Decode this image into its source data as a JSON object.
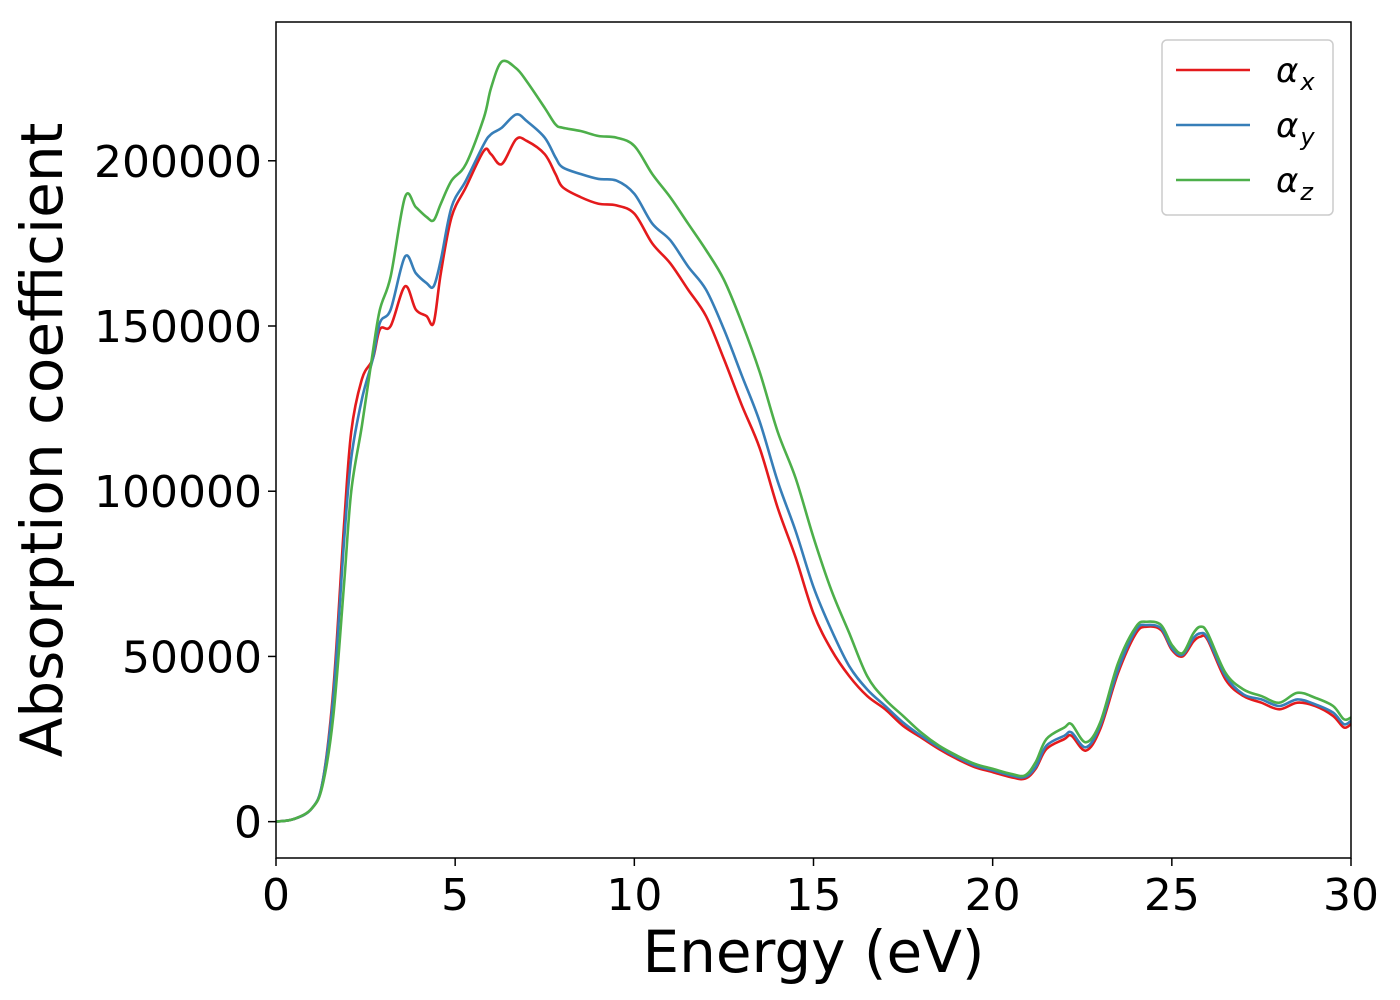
{
  "chart_data": {
    "type": "line",
    "title": "",
    "xlabel": "Energy (eV)",
    "ylabel": "Absorption coefficient",
    "xlim": [
      0,
      30
    ],
    "ylim": [
      -11000,
      242000
    ],
    "grid": false,
    "legend_position": "top-right",
    "x_ticks": [
      0,
      5,
      10,
      15,
      20,
      25,
      30
    ],
    "x_tick_labels": [
      "0",
      "5",
      "10",
      "15",
      "20",
      "25",
      "30"
    ],
    "y_ticks": [
      0,
      50000,
      100000,
      150000,
      200000
    ],
    "y_tick_labels": [
      "0",
      "50000",
      "100000",
      "150000",
      "200000"
    ],
    "series": [
      {
        "name": "α",
        "subscript": "x",
        "color": "#e41a1c",
        "points": [
          [
            0,
            0
          ],
          [
            0.5,
            800
          ],
          [
            1.0,
            4000
          ],
          [
            1.3,
            12000
          ],
          [
            1.6,
            40000
          ],
          [
            1.9,
            90000
          ],
          [
            2.1,
            118000
          ],
          [
            2.4,
            134000
          ],
          [
            2.7,
            140000
          ],
          [
            2.9,
            149000
          ],
          [
            3.2,
            150000
          ],
          [
            3.6,
            162000
          ],
          [
            3.9,
            155000
          ],
          [
            4.2,
            153000
          ],
          [
            4.4,
            151000
          ],
          [
            4.6,
            166000
          ],
          [
            4.9,
            183000
          ],
          [
            5.3,
            192000
          ],
          [
            5.8,
            203000
          ],
          [
            6.0,
            202000
          ],
          [
            6.3,
            199000
          ],
          [
            6.7,
            206500
          ],
          [
            7.0,
            206000
          ],
          [
            7.5,
            202000
          ],
          [
            7.8,
            196000
          ],
          [
            8.0,
            192000
          ],
          [
            8.5,
            189000
          ],
          [
            9.0,
            187000
          ],
          [
            9.5,
            186500
          ],
          [
            10.0,
            184000
          ],
          [
            10.5,
            175000
          ],
          [
            11.0,
            169000
          ],
          [
            11.5,
            161000
          ],
          [
            12.0,
            153000
          ],
          [
            12.5,
            140000
          ],
          [
            13.0,
            126000
          ],
          [
            13.5,
            113000
          ],
          [
            14.0,
            95000
          ],
          [
            14.5,
            80000
          ],
          [
            15.0,
            63000
          ],
          [
            15.5,
            52000
          ],
          [
            16.0,
            44000
          ],
          [
            16.5,
            38000
          ],
          [
            17.0,
            34000
          ],
          [
            17.5,
            29000
          ],
          [
            18.0,
            25500
          ],
          [
            18.5,
            22000
          ],
          [
            19.0,
            19000
          ],
          [
            19.5,
            16500
          ],
          [
            20.0,
            15000
          ],
          [
            20.5,
            13500
          ],
          [
            20.9,
            13000
          ],
          [
            21.2,
            16000
          ],
          [
            21.5,
            22000
          ],
          [
            22.0,
            25000
          ],
          [
            22.2,
            26000
          ],
          [
            22.6,
            21500
          ],
          [
            23.0,
            28000
          ],
          [
            23.5,
            45000
          ],
          [
            24.0,
            57000
          ],
          [
            24.3,
            59000
          ],
          [
            24.7,
            58000
          ],
          [
            25.0,
            52000
          ],
          [
            25.3,
            50000
          ],
          [
            25.6,
            54500
          ],
          [
            25.8,
            56000
          ],
          [
            26.0,
            55000
          ],
          [
            26.5,
            43000
          ],
          [
            27.0,
            38000
          ],
          [
            27.5,
            36000
          ],
          [
            28.0,
            34000
          ],
          [
            28.5,
            36000
          ],
          [
            29.0,
            35000
          ],
          [
            29.5,
            32000
          ],
          [
            29.8,
            28500
          ],
          [
            30,
            29500
          ]
        ]
      },
      {
        "name": "α",
        "subscript": "y",
        "color": "#377eb8",
        "points": [
          [
            0,
            0
          ],
          [
            0.5,
            800
          ],
          [
            1.0,
            4000
          ],
          [
            1.3,
            12000
          ],
          [
            1.6,
            38000
          ],
          [
            1.9,
            85000
          ],
          [
            2.1,
            110000
          ],
          [
            2.4,
            128000
          ],
          [
            2.7,
            140000
          ],
          [
            2.9,
            151000
          ],
          [
            3.2,
            155000
          ],
          [
            3.6,
            171000
          ],
          [
            3.9,
            166000
          ],
          [
            4.2,
            163000
          ],
          [
            4.4,
            162000
          ],
          [
            4.6,
            170000
          ],
          [
            4.9,
            186000
          ],
          [
            5.3,
            194000
          ],
          [
            5.8,
            205000
          ],
          [
            6.0,
            208000
          ],
          [
            6.3,
            210000
          ],
          [
            6.7,
            214000
          ],
          [
            7.0,
            212000
          ],
          [
            7.5,
            207000
          ],
          [
            7.8,
            201000
          ],
          [
            8.0,
            198000
          ],
          [
            8.5,
            196000
          ],
          [
            9.0,
            194500
          ],
          [
            9.5,
            194000
          ],
          [
            10.0,
            190000
          ],
          [
            10.5,
            181000
          ],
          [
            11.0,
            176000
          ],
          [
            11.5,
            168000
          ],
          [
            12.0,
            161000
          ],
          [
            12.5,
            149000
          ],
          [
            13.0,
            135000
          ],
          [
            13.5,
            121000
          ],
          [
            14.0,
            103000
          ],
          [
            14.5,
            88000
          ],
          [
            15.0,
            71000
          ],
          [
            15.5,
            58000
          ],
          [
            16.0,
            47000
          ],
          [
            16.5,
            40000
          ],
          [
            17.0,
            35000
          ],
          [
            17.5,
            30000
          ],
          [
            18.0,
            26000
          ],
          [
            18.5,
            22500
          ],
          [
            19.0,
            19500
          ],
          [
            19.5,
            17000
          ],
          [
            20.0,
            15500
          ],
          [
            20.5,
            14000
          ],
          [
            20.9,
            13500
          ],
          [
            21.2,
            16500
          ],
          [
            21.5,
            23000
          ],
          [
            22.0,
            26000
          ],
          [
            22.2,
            27000
          ],
          [
            22.6,
            22500
          ],
          [
            23.0,
            29000
          ],
          [
            23.5,
            46000
          ],
          [
            24.0,
            58000
          ],
          [
            24.3,
            59500
          ],
          [
            24.7,
            58500
          ],
          [
            25.0,
            52500
          ],
          [
            25.3,
            50500
          ],
          [
            25.6,
            55500
          ],
          [
            25.8,
            57000
          ],
          [
            26.0,
            55500
          ],
          [
            26.5,
            44000
          ],
          [
            27.0,
            38500
          ],
          [
            27.5,
            37000
          ],
          [
            28.0,
            35000
          ],
          [
            28.5,
            37000
          ],
          [
            29.0,
            35500
          ],
          [
            29.5,
            33000
          ],
          [
            29.8,
            29500
          ],
          [
            30,
            30500
          ]
        ]
      },
      {
        "name": "α",
        "subscript": "z",
        "color": "#4daf4a",
        "points": [
          [
            0,
            0
          ],
          [
            0.5,
            800
          ],
          [
            1.0,
            4000
          ],
          [
            1.3,
            11000
          ],
          [
            1.6,
            32000
          ],
          [
            1.9,
            72000
          ],
          [
            2.1,
            100000
          ],
          [
            2.4,
            120000
          ],
          [
            2.7,
            142000
          ],
          [
            2.9,
            155000
          ],
          [
            3.2,
            165000
          ],
          [
            3.6,
            189000
          ],
          [
            3.9,
            186000
          ],
          [
            4.2,
            183000
          ],
          [
            4.4,
            182000
          ],
          [
            4.6,
            187000
          ],
          [
            4.9,
            194000
          ],
          [
            5.3,
            199000
          ],
          [
            5.8,
            213000
          ],
          [
            6.0,
            222000
          ],
          [
            6.3,
            230000
          ],
          [
            6.7,
            228000
          ],
          [
            7.0,
            224000
          ],
          [
            7.5,
            216000
          ],
          [
            7.8,
            211000
          ],
          [
            8.0,
            210000
          ],
          [
            8.5,
            209000
          ],
          [
            9.0,
            207500
          ],
          [
            9.5,
            207000
          ],
          [
            10.0,
            204500
          ],
          [
            10.5,
            196000
          ],
          [
            11.0,
            189000
          ],
          [
            11.5,
            181000
          ],
          [
            12.0,
            173000
          ],
          [
            12.5,
            164000
          ],
          [
            13.0,
            151000
          ],
          [
            13.5,
            136000
          ],
          [
            14.0,
            118000
          ],
          [
            14.5,
            104000
          ],
          [
            15.0,
            86000
          ],
          [
            15.5,
            70000
          ],
          [
            16.0,
            57000
          ],
          [
            16.5,
            44000
          ],
          [
            17.0,
            37000
          ],
          [
            17.5,
            32000
          ],
          [
            18.0,
            27000
          ],
          [
            18.5,
            23000
          ],
          [
            19.0,
            20000
          ],
          [
            19.5,
            17500
          ],
          [
            20.0,
            16000
          ],
          [
            20.5,
            14500
          ],
          [
            20.9,
            14000
          ],
          [
            21.2,
            18000
          ],
          [
            21.5,
            25000
          ],
          [
            22.0,
            28500
          ],
          [
            22.2,
            29500
          ],
          [
            22.6,
            24000
          ],
          [
            23.0,
            30000
          ],
          [
            23.5,
            48000
          ],
          [
            24.0,
            59000
          ],
          [
            24.3,
            60500
          ],
          [
            24.7,
            59500
          ],
          [
            25.0,
            53500
          ],
          [
            25.3,
            51000
          ],
          [
            25.6,
            57000
          ],
          [
            25.8,
            59000
          ],
          [
            26.0,
            57000
          ],
          [
            26.5,
            45000
          ],
          [
            27.0,
            40000
          ],
          [
            27.5,
            38000
          ],
          [
            28.0,
            36000
          ],
          [
            28.5,
            39000
          ],
          [
            29.0,
            37500
          ],
          [
            29.5,
            35000
          ],
          [
            29.8,
            31000
          ],
          [
            30,
            31500
          ]
        ]
      }
    ]
  }
}
